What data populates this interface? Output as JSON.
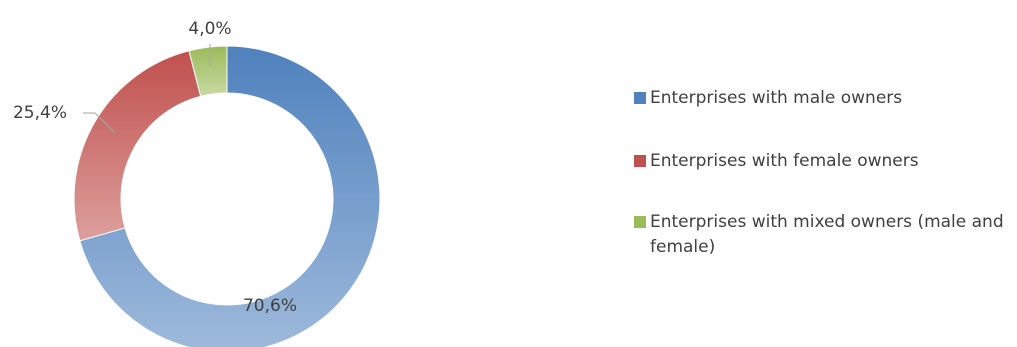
{
  "chart_data": {
    "type": "doughnut",
    "title": "",
    "legend_position": "right",
    "series": [
      {
        "labels": [
          "Enterprises with male owners",
          "Enterprises with female owners",
          "Enterprises with mixed owners (male and female)"
        ],
        "values": [
          70.6,
          25.4,
          4.0
        ],
        "value_labels": [
          "70,6%",
          "25,4%",
          "4,0%"
        ],
        "colors": [
          "#4f81bd",
          "#c0504d",
          "#9bbb59"
        ]
      }
    ]
  }
}
